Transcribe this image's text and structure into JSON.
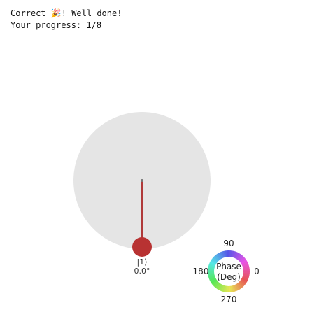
{
  "feedback": {
    "prefix": "Correct ",
    "emoji": "🎉",
    "suffix": "! Well done!"
  },
  "progress": {
    "text": "Your progress: 1/8"
  },
  "qubit": {
    "state_label": "|1⟩",
    "phase_label": "0.0°",
    "magnitude": 1.0,
    "phase_deg": 0.0,
    "disk_color": "#e5e5e5",
    "vector_color": "#b03a3a",
    "tip_color": "#b83232"
  },
  "phase_wheel": {
    "title_line1": "Phase",
    "title_line2": "(Deg)",
    "label_90": "90",
    "label_180": "180",
    "label_0": "0",
    "label_270": "270"
  }
}
